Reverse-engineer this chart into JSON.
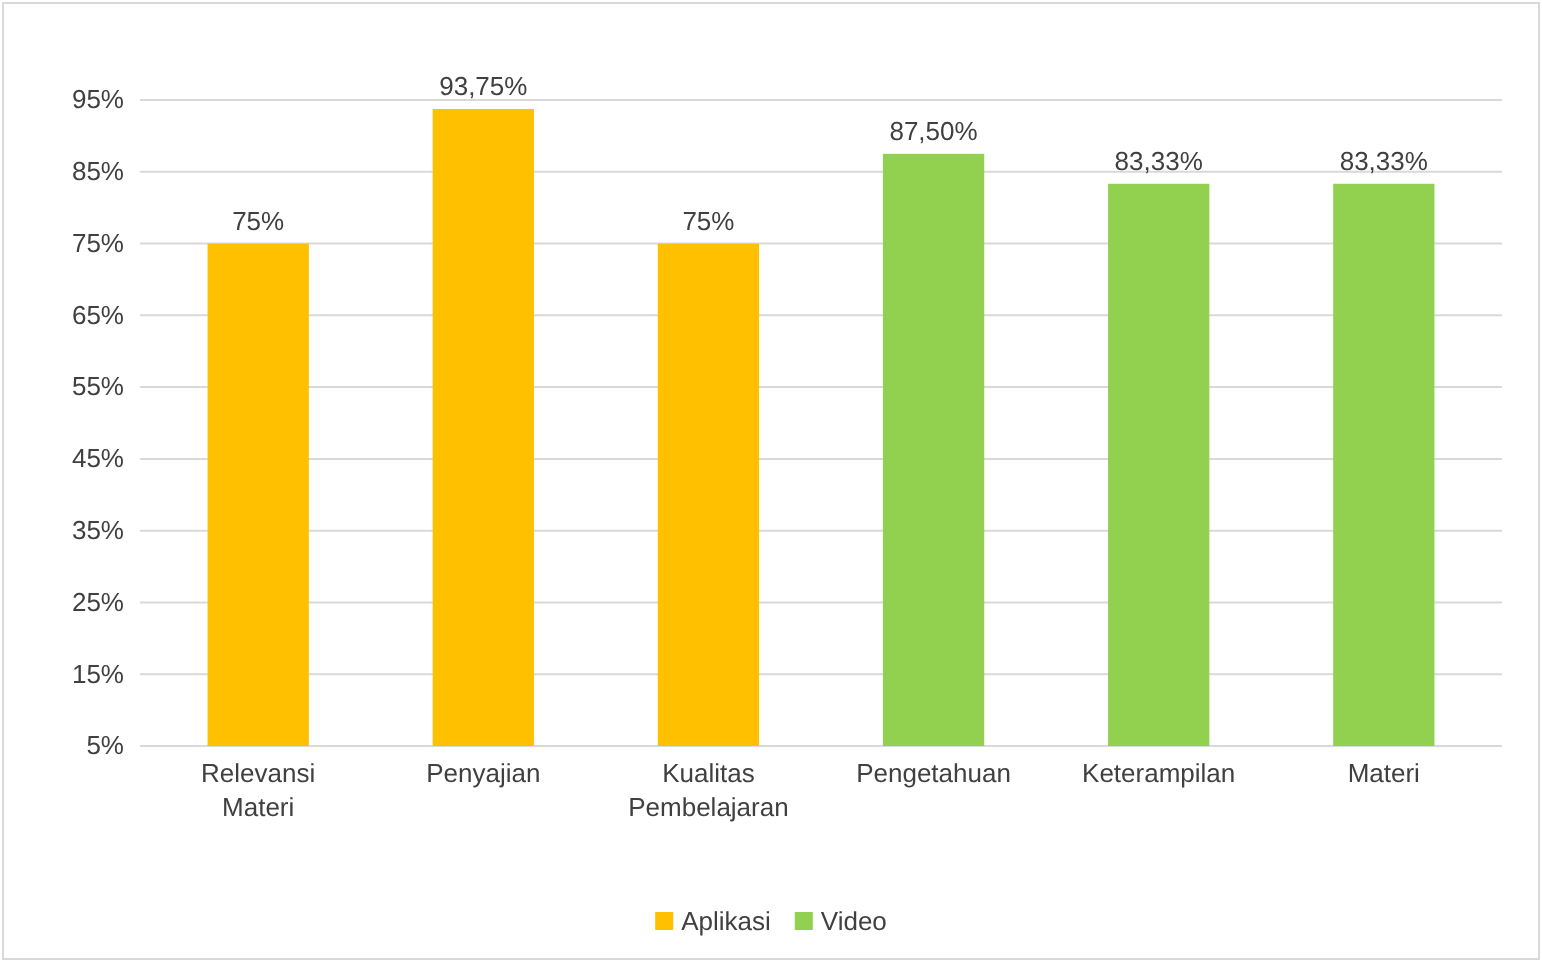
{
  "chart_data": {
    "type": "bar",
    "categories": [
      "Relevansi Materi",
      "Penyajian",
      "Kualitas Pembelajaran",
      "Pengetahuan",
      "Keterampilan",
      "Materi"
    ],
    "series": [
      {
        "name": "Aplikasi",
        "color": "#ffc000",
        "values": [
          75,
          93.75,
          75,
          null,
          null,
          null
        ],
        "value_labels": [
          "75%",
          "93,75%",
          "75%",
          null,
          null,
          null
        ]
      },
      {
        "name": "Video",
        "color": "#92d050",
        "values": [
          null,
          null,
          null,
          87.5,
          83.33,
          83.33
        ],
        "value_labels": [
          null,
          null,
          null,
          "87,50%",
          "83,33%",
          "83,33%"
        ]
      }
    ],
    "ylim": [
      5,
      95
    ],
    "yticks": [
      {
        "value": 5,
        "label": "5%"
      },
      {
        "value": 15,
        "label": "15%"
      },
      {
        "value": 25,
        "label": "25%"
      },
      {
        "value": 35,
        "label": "35%"
      },
      {
        "value": 45,
        "label": "45%"
      },
      {
        "value": 55,
        "label": "55%"
      },
      {
        "value": 65,
        "label": "65%"
      },
      {
        "value": 75,
        "label": "75%"
      },
      {
        "value": 85,
        "label": "85%"
      },
      {
        "value": 95,
        "label": "95%"
      }
    ],
    "grid": "y",
    "legend": "bottom"
  }
}
